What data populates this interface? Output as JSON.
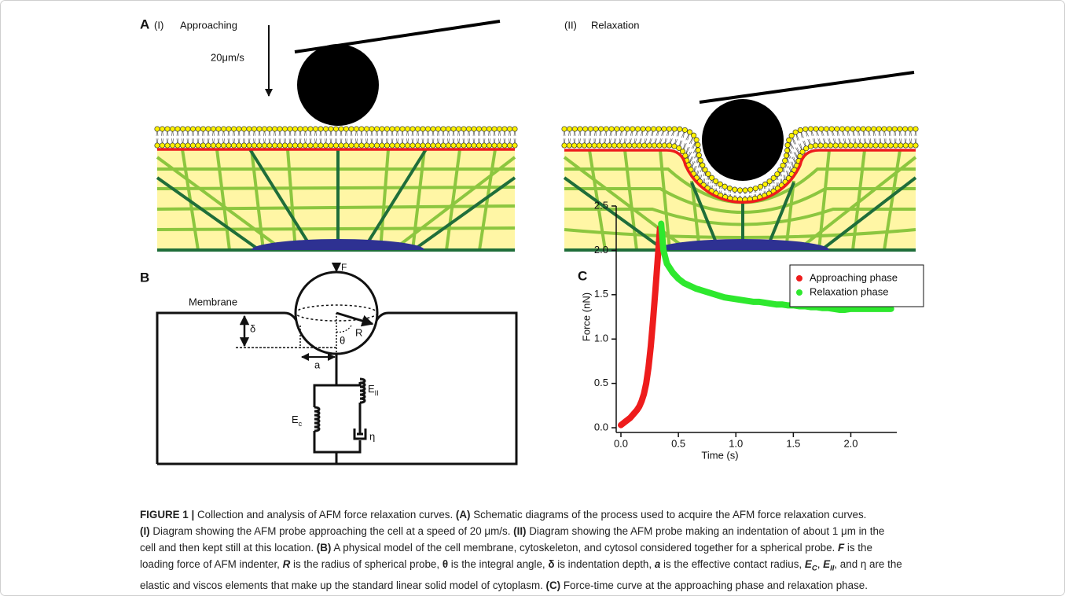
{
  "panel_a": {
    "label": "A",
    "approaching": {
      "label": "(I)",
      "title": "Approaching",
      "speed": "20μm/s"
    },
    "relaxation": {
      "label": "(II)",
      "title": "Relaxation"
    }
  },
  "panel_b": {
    "label": "B",
    "force": "F",
    "membrane": "Membrane",
    "depth": "δ",
    "radius": "R",
    "angle": "θ",
    "contact_radius": "a",
    "ec": {
      "symbol": "E",
      "subscript": "c"
    },
    "eii": {
      "symbol": "E",
      "subscript": "II"
    },
    "viscosity": "η"
  },
  "chart_data": {
    "type": "line",
    "panel_label": "C",
    "xlabel": "Time (s)",
    "ylabel": "Force (nN)",
    "xlim": [
      0,
      2.4
    ],
    "ylim": [
      0,
      2.5
    ],
    "xticks": [
      {
        "value": 0,
        "label": "0.0"
      },
      0.5,
      {
        "value": 1,
        "label": "1.0"
      },
      1.5,
      {
        "value": 2,
        "label": "2.0"
      }
    ],
    "yticks": [
      {
        "value": 0,
        "label": "0.0"
      },
      0.5,
      {
        "value": 1,
        "label": "1.0"
      },
      1.5,
      {
        "value": 2,
        "label": "2.0"
      },
      2.5
    ],
    "legend": "upper right",
    "series": [
      {
        "name": "Approaching phase",
        "color": "#ee1c1c",
        "x": [
          0,
          0.02,
          0.04,
          0.06,
          0.08,
          0.1,
          0.12,
          0.14,
          0.16,
          0.18,
          0.2,
          0.22,
          0.24,
          0.26,
          0.28,
          0.3,
          0.32,
          0.34
        ],
        "values": [
          0.03,
          0.05,
          0.07,
          0.09,
          0.11,
          0.14,
          0.17,
          0.2,
          0.24,
          0.3,
          0.38,
          0.5,
          0.68,
          0.92,
          1.22,
          1.55,
          1.9,
          2.25
        ]
      },
      {
        "name": "Relaxation phase",
        "color": "#2ee82e",
        "x": [
          0.35,
          0.37,
          0.4,
          0.45,
          0.5,
          0.55,
          0.6,
          0.65,
          0.7,
          0.75,
          0.8,
          0.85,
          0.9,
          0.95,
          1.0,
          1.05,
          1.1,
          1.15,
          1.2,
          1.25,
          1.3,
          1.35,
          1.4,
          1.45,
          1.5,
          1.55,
          1.6,
          1.65,
          1.7,
          1.75,
          1.8,
          1.85,
          1.9,
          1.95,
          2.0,
          2.05,
          2.1,
          2.15,
          2.2,
          2.25,
          2.3,
          2.35
        ],
        "values": [
          2.3,
          2.0,
          1.85,
          1.75,
          1.68,
          1.63,
          1.6,
          1.57,
          1.55,
          1.53,
          1.51,
          1.49,
          1.47,
          1.46,
          1.45,
          1.44,
          1.43,
          1.42,
          1.42,
          1.41,
          1.4,
          1.39,
          1.39,
          1.38,
          1.38,
          1.37,
          1.37,
          1.36,
          1.36,
          1.35,
          1.35,
          1.34,
          1.33,
          1.33,
          1.34,
          1.34,
          1.34,
          1.34,
          1.34,
          1.34,
          1.34,
          1.34
        ]
      }
    ]
  },
  "caption": {
    "lines": [
      [
        {
          "text": "FIGURE 1 |",
          "bold": true
        },
        {
          "text": " Collection and analysis of AFM force relaxation curves. "
        },
        {
          "text": "(A)",
          "bold": true
        },
        {
          "text": " Schematic diagrams of the process used to acquire the AFM force relaxation curves."
        }
      ],
      [
        {
          "text": "(I)",
          "bold": true
        },
        {
          "text": " Diagram showing the AFM probe approaching the cell at a speed of 20 μm/s. "
        },
        {
          "text": "(II)",
          "bold": true
        },
        {
          "text": " Diagram showing the AFM probe making an indentation of about 1 μm in the"
        }
      ],
      [
        {
          "text": "cell and then kept still at this location. "
        },
        {
          "text": "(B)",
          "bold": true
        },
        {
          "text": " A physical model of the cell membrane, cytoskeleton, and cytosol considered together for a spherical probe. "
        },
        {
          "text": "F",
          "bold": true,
          "italic": true
        },
        {
          "text": " is the"
        }
      ],
      [
        {
          "text": "loading force of AFM indenter, "
        },
        {
          "text": "R",
          "bold": true,
          "italic": true
        },
        {
          "text": " is the radius of spherical probe, "
        },
        {
          "text": "θ",
          "bold": true
        },
        {
          "text": " is the integral angle, "
        },
        {
          "text": "δ",
          "bold": true
        },
        {
          "text": " is indentation depth, "
        },
        {
          "text": "a",
          "bold": true,
          "italic": true
        },
        {
          "text": " is the effective contact radius, "
        },
        {
          "text": "E",
          "bold": true,
          "italic": true
        },
        {
          "text": "C",
          "bold": true,
          "italic": true,
          "sub": true
        },
        {
          "text": ", "
        },
        {
          "text": "E",
          "bold": true,
          "italic": true
        },
        {
          "text": "II",
          "bold": true,
          "italic": true,
          "sub": true
        },
        {
          "text": ", and η are the"
        }
      ],
      [
        {
          "text": "elastic and viscos elements that make up the standard linear solid model of cytoplasm. "
        },
        {
          "text": "(C)",
          "bold": true
        },
        {
          "text": " Force-time curve at the approaching phase and relaxation phase."
        }
      ]
    ]
  }
}
